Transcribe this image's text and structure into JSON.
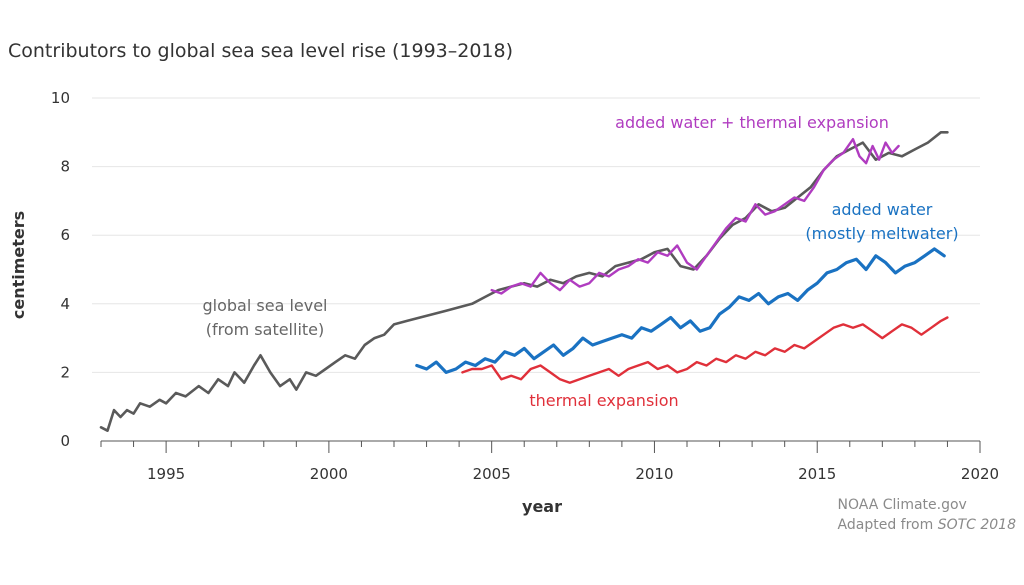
{
  "chart_data": {
    "type": "line",
    "title": "Contributors to global sea sea level rise (1993–2018)",
    "xlabel": "year",
    "ylabel": "centimeters",
    "xlim": [
      1993,
      2020
    ],
    "ylim": [
      0,
      10
    ],
    "x_ticks": [
      "1995",
      "2000",
      "2005",
      "2010",
      "2015",
      "2020"
    ],
    "y_ticks": [
      "0",
      "2",
      "4",
      "6",
      "8",
      "10"
    ],
    "grid": true,
    "series": [
      {
        "name": "global sea level (from satellite)",
        "label_lines": [
          "global sea level",
          "(from satellite)"
        ],
        "color": "#5a5a5a",
        "x": [
          1993.0,
          1993.2,
          1993.4,
          1993.6,
          1993.8,
          1994.0,
          1994.2,
          1994.5,
          1994.8,
          1995.0,
          1995.3,
          1995.6,
          1996.0,
          1996.3,
          1996.6,
          1996.9,
          1997.1,
          1997.4,
          1997.7,
          1997.9,
          1998.2,
          1998.5,
          1998.8,
          1999.0,
          1999.3,
          1999.6,
          1999.9,
          2000.2,
          2000.5,
          2000.8,
          2001.1,
          2001.4,
          2001.7,
          2002.0,
          2002.4,
          2002.8,
          2003.2,
          2003.6,
          2004.0,
          2004.4,
          2004.8,
          2005.2,
          2005.6,
          2006.0,
          2006.4,
          2006.8,
          2007.2,
          2007.6,
          2008.0,
          2008.4,
          2008.8,
          2009.2,
          2009.6,
          2010.0,
          2010.4,
          2010.8,
          2011.2,
          2011.6,
          2012.0,
          2012.4,
          2012.8,
          2013.2,
          2013.6,
          2014.0,
          2014.4,
          2014.8,
          2015.2,
          2015.6,
          2016.0,
          2016.4,
          2016.8,
          2017.2,
          2017.6,
          2018.0,
          2018.4,
          2018.8,
          2019.0
        ],
        "values": [
          0.4,
          0.3,
          0.9,
          0.7,
          0.9,
          0.8,
          1.1,
          1.0,
          1.2,
          1.1,
          1.4,
          1.3,
          1.6,
          1.4,
          1.8,
          1.6,
          2.0,
          1.7,
          2.2,
          2.5,
          2.0,
          1.6,
          1.8,
          1.5,
          2.0,
          1.9,
          2.1,
          2.3,
          2.5,
          2.4,
          2.8,
          3.0,
          3.1,
          3.4,
          3.5,
          3.6,
          3.7,
          3.8,
          3.9,
          4.0,
          4.2,
          4.4,
          4.5,
          4.6,
          4.5,
          4.7,
          4.6,
          4.8,
          4.9,
          4.8,
          5.1,
          5.2,
          5.3,
          5.5,
          5.6,
          5.1,
          5.0,
          5.4,
          5.9,
          6.3,
          6.5,
          6.9,
          6.7,
          6.8,
          7.1,
          7.4,
          7.9,
          8.3,
          8.5,
          8.7,
          8.2,
          8.4,
          8.3,
          8.5,
          8.7,
          9.0,
          9.0
        ]
      },
      {
        "name": "added water + thermal expansion",
        "label_lines": [
          "added water + thermal expansion"
        ],
        "color": "#b03cc0",
        "x": [
          2005.0,
          2005.3,
          2005.6,
          2005.9,
          2006.2,
          2006.5,
          2006.8,
          2007.1,
          2007.4,
          2007.7,
          2008.0,
          2008.3,
          2008.6,
          2008.9,
          2009.2,
          2009.5,
          2009.8,
          2010.1,
          2010.4,
          2010.7,
          2011.0,
          2011.3,
          2011.6,
          2011.9,
          2012.2,
          2012.5,
          2012.8,
          2013.1,
          2013.4,
          2013.7,
          2014.0,
          2014.3,
          2014.6,
          2014.9,
          2015.2,
          2015.5,
          2015.8,
          2016.1,
          2016.3,
          2016.5,
          2016.7,
          2016.9,
          2017.1,
          2017.3,
          2017.5
        ],
        "values": [
          4.4,
          4.3,
          4.5,
          4.6,
          4.5,
          4.9,
          4.6,
          4.4,
          4.7,
          4.5,
          4.6,
          4.9,
          4.8,
          5.0,
          5.1,
          5.3,
          5.2,
          5.5,
          5.4,
          5.7,
          5.2,
          5.0,
          5.4,
          5.8,
          6.2,
          6.5,
          6.4,
          6.9,
          6.6,
          6.7,
          6.9,
          7.1,
          7.0,
          7.4,
          7.9,
          8.2,
          8.4,
          8.8,
          8.3,
          8.1,
          8.6,
          8.2,
          8.7,
          8.4,
          8.6
        ]
      },
      {
        "name": "added water (mostly meltwater)",
        "label_lines": [
          "added water",
          "(mostly meltwater)"
        ],
        "color": "#1a72c2",
        "x": [
          2002.7,
          2003.0,
          2003.3,
          2003.6,
          2003.9,
          2004.2,
          2004.5,
          2004.8,
          2005.1,
          2005.4,
          2005.7,
          2006.0,
          2006.3,
          2006.6,
          2006.9,
          2007.2,
          2007.5,
          2007.8,
          2008.1,
          2008.4,
          2008.7,
          2009.0,
          2009.3,
          2009.6,
          2009.9,
          2010.2,
          2010.5,
          2010.8,
          2011.1,
          2011.4,
          2011.7,
          2012.0,
          2012.3,
          2012.6,
          2012.9,
          2013.2,
          2013.5,
          2013.8,
          2014.1,
          2014.4,
          2014.7,
          2015.0,
          2015.3,
          2015.6,
          2015.9,
          2016.2,
          2016.5,
          2016.8,
          2017.1,
          2017.4,
          2017.7,
          2018.0,
          2018.3,
          2018.6,
          2018.9
        ],
        "values": [
          2.2,
          2.1,
          2.3,
          2.0,
          2.1,
          2.3,
          2.2,
          2.4,
          2.3,
          2.6,
          2.5,
          2.7,
          2.4,
          2.6,
          2.8,
          2.5,
          2.7,
          3.0,
          2.8,
          2.9,
          3.0,
          3.1,
          3.0,
          3.3,
          3.2,
          3.4,
          3.6,
          3.3,
          3.5,
          3.2,
          3.3,
          3.7,
          3.9,
          4.2,
          4.1,
          4.3,
          4.0,
          4.2,
          4.3,
          4.1,
          4.4,
          4.6,
          4.9,
          5.0,
          5.2,
          5.3,
          5.0,
          5.4,
          5.2,
          4.9,
          5.1,
          5.2,
          5.4,
          5.6,
          5.4
        ]
      },
      {
        "name": "thermal expansion",
        "label_lines": [
          "thermal expansion"
        ],
        "color": "#e0303a",
        "x": [
          2004.1,
          2004.4,
          2004.7,
          2005.0,
          2005.3,
          2005.6,
          2005.9,
          2006.2,
          2006.5,
          2006.8,
          2007.1,
          2007.4,
          2007.7,
          2008.0,
          2008.3,
          2008.6,
          2008.9,
          2009.2,
          2009.5,
          2009.8,
          2010.1,
          2010.4,
          2010.7,
          2011.0,
          2011.3,
          2011.6,
          2011.9,
          2012.2,
          2012.5,
          2012.8,
          2013.1,
          2013.4,
          2013.7,
          2014.0,
          2014.3,
          2014.6,
          2014.9,
          2015.2,
          2015.5,
          2015.8,
          2016.1,
          2016.4,
          2016.7,
          2017.0,
          2017.3,
          2017.6,
          2017.9,
          2018.2,
          2018.5,
          2018.8,
          2019.0
        ],
        "values": [
          2.0,
          2.1,
          2.1,
          2.2,
          1.8,
          1.9,
          1.8,
          2.1,
          2.2,
          2.0,
          1.8,
          1.7,
          1.8,
          1.9,
          2.0,
          2.1,
          1.9,
          2.1,
          2.2,
          2.3,
          2.1,
          2.2,
          2.0,
          2.1,
          2.3,
          2.2,
          2.4,
          2.3,
          2.5,
          2.4,
          2.6,
          2.5,
          2.7,
          2.6,
          2.8,
          2.7,
          2.9,
          3.1,
          3.3,
          3.4,
          3.3,
          3.4,
          3.2,
          3.0,
          3.2,
          3.4,
          3.3,
          3.1,
          3.3,
          3.5,
          3.6
        ]
      }
    ]
  },
  "credit": {
    "line1": "NOAA Climate.gov",
    "line2_prefix": "Adapted from ",
    "line2_source": "SOTC 2018"
  }
}
